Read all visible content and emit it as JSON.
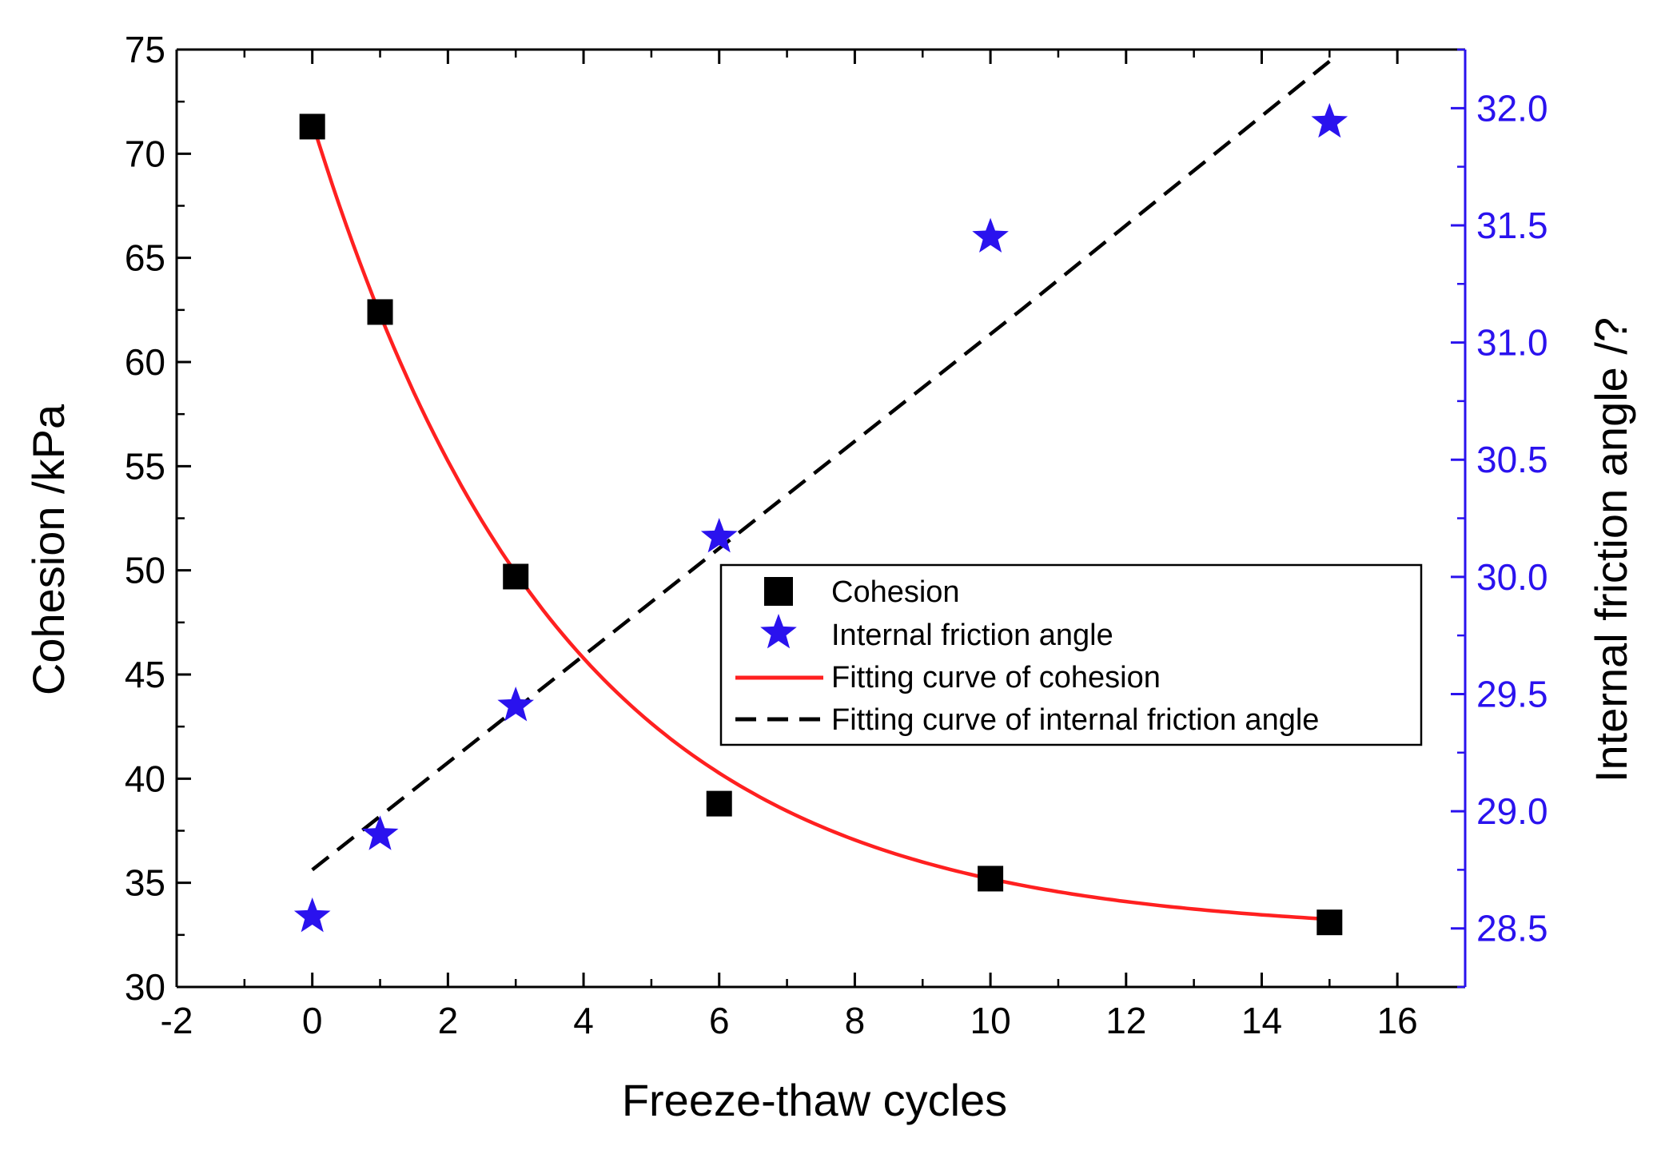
{
  "chart_data": {
    "type": "scatter",
    "title": "",
    "xlabel": "Freeze-thaw cycles",
    "ylabel_left": "Cohesion /kPa",
    "ylabel_right": "Internal friction angle /?",
    "xlim": [
      -2,
      17
    ],
    "ylim_left": [
      30,
      75
    ],
    "ylim_right": [
      28.25,
      32.25
    ],
    "x_ticks": [
      -2,
      0,
      2,
      4,
      6,
      8,
      10,
      12,
      14,
      16
    ],
    "x_tick_labels": [
      "-2",
      "0",
      "2",
      "4",
      "6",
      "8",
      "10",
      "12",
      "14",
      "16"
    ],
    "y_left_ticks": [
      30,
      35,
      40,
      45,
      50,
      55,
      60,
      65,
      70,
      75
    ],
    "y_left_tick_labels": [
      "30",
      "35",
      "40",
      "45",
      "50",
      "55",
      "60",
      "65",
      "70",
      "75"
    ],
    "y_right_ticks": [
      28.5,
      29.0,
      29.5,
      30.0,
      30.5,
      31.0,
      31.5,
      32.0
    ],
    "y_right_tick_labels": [
      "28.5",
      "29.0",
      "29.5",
      "30.0",
      "30.5",
      "31.0",
      "31.5",
      "32.0"
    ],
    "legend_position": "center-right",
    "series": [
      {
        "name": "Cohesion",
        "axis": "left",
        "kind": "scatter",
        "marker": "square",
        "color": "#000000",
        "x": [
          0,
          1,
          3,
          6,
          10,
          15
        ],
        "y": [
          71.3,
          62.4,
          49.7,
          38.8,
          35.2,
          33.1
        ]
      },
      {
        "name": "Internal friction angle",
        "axis": "right",
        "kind": "scatter",
        "marker": "star",
        "color": "#2a12ee",
        "x": [
          0,
          1,
          3,
          6,
          10,
          15
        ],
        "y": [
          28.55,
          28.9,
          29.45,
          30.17,
          31.45,
          31.94
        ]
      },
      {
        "name": "Fitting curve of cohesion",
        "axis": "left",
        "kind": "line",
        "style": "solid",
        "color": "#ff2020",
        "model": {
          "type": "exponential_decay",
          "y0": 32.58,
          "A": 38.92,
          "t": 3.7
        },
        "x_range": [
          0,
          15
        ]
      },
      {
        "name": "Fitting curve of internal friction angle",
        "axis": "right",
        "kind": "line",
        "style": "dashed",
        "color": "#000000",
        "x": [
          0,
          10.5,
          15
        ],
        "y": [
          28.75,
          31.15,
          32.2
        ]
      }
    ],
    "colors": {
      "left_axis": "#000000",
      "right_axis": "#2a12ee",
      "background": "#ffffff"
    }
  }
}
